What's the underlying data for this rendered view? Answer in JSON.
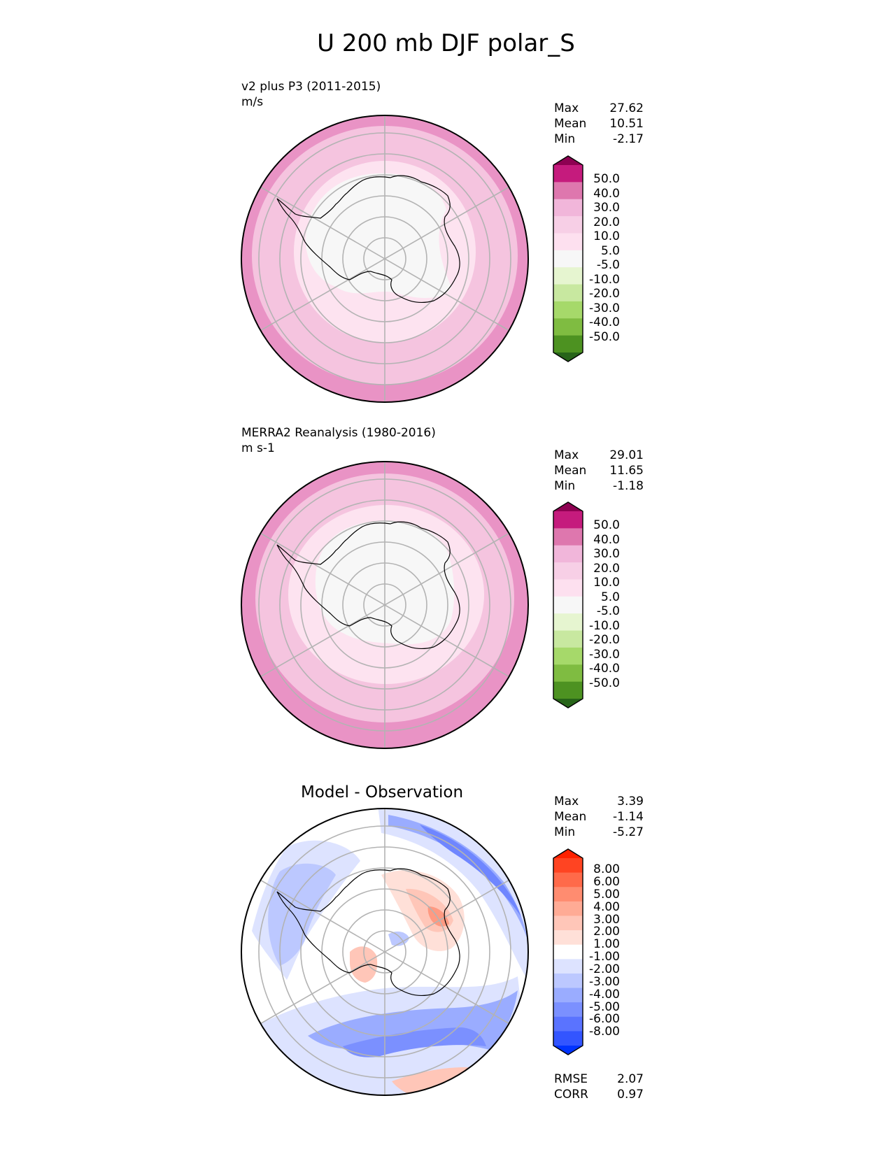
{
  "title": "U 200 mb DJF polar_S",
  "panels": [
    {
      "id": "model",
      "title": "v2 plus P3 (2011-2015)",
      "units": "m/s",
      "stats": [
        {
          "label": "Max",
          "value": "27.62"
        },
        {
          "label": "Mean",
          "value": "10.51"
        },
        {
          "label": "Min",
          "value": "-2.17"
        }
      ],
      "colorbar": {
        "labels": [
          "50.0",
          "40.0",
          "30.0",
          "20.0",
          "10.0",
          "5.0",
          "-5.0",
          "-10.0",
          "-20.0",
          "-30.0",
          "-40.0",
          "-50.0"
        ],
        "colors": [
          "#8e0152",
          "#c51b7d",
          "#de77ae",
          "#f1b6da",
          "#f7cfe6",
          "#fde0ef",
          "#f7f7f7",
          "#e6f5d0",
          "#c8e8a0",
          "#a6d96a",
          "#7fbc41",
          "#4d9221",
          "#276419"
        ]
      }
    },
    {
      "id": "obs",
      "title": "MERRA2 Reanalysis (1980-2016)",
      "units": "m s-1",
      "stats": [
        {
          "label": "Max",
          "value": "29.01"
        },
        {
          "label": "Mean",
          "value": "11.65"
        },
        {
          "label": "Min",
          "value": "-1.18"
        }
      ],
      "colorbar": {
        "labels": [
          "50.0",
          "40.0",
          "30.0",
          "20.0",
          "10.0",
          "5.0",
          "-5.0",
          "-10.0",
          "-20.0",
          "-30.0",
          "-40.0",
          "-50.0"
        ],
        "colors": [
          "#8e0152",
          "#c51b7d",
          "#de77ae",
          "#f1b6da",
          "#f7cfe6",
          "#fde0ef",
          "#f7f7f7",
          "#e6f5d0",
          "#c8e8a0",
          "#a6d96a",
          "#7fbc41",
          "#4d9221",
          "#276419"
        ]
      }
    },
    {
      "id": "diff",
      "title": "Model - Observation",
      "stats": [
        {
          "label": "Max",
          "value": "3.39"
        },
        {
          "label": "Mean",
          "value": "-1.14"
        },
        {
          "label": "Min",
          "value": "-5.27"
        }
      ],
      "metrics": [
        {
          "label": "RMSE",
          "value": "2.07"
        },
        {
          "label": "CORR",
          "value": "0.97"
        }
      ],
      "colorbar": {
        "labels": [
          "8.00",
          "6.00",
          "5.00",
          "4.00",
          "3.00",
          "2.00",
          "1.00",
          "-1.00",
          "-2.00",
          "-3.00",
          "-4.00",
          "-5.00",
          "-6.00",
          "-8.00"
        ],
        "colors": [
          "#ff2200",
          "#ff4422",
          "#ff6a4a",
          "#ff8c70",
          "#ffab95",
          "#ffc6b8",
          "#ffe0d8",
          "#ffffff",
          "#dde3ff",
          "#bcc8ff",
          "#9aacff",
          "#7b90ff",
          "#5a73ff",
          "#3355ff",
          "#0033ff"
        ]
      }
    }
  ],
  "chart_data": [
    {
      "type": "heatmap",
      "projection": "south polar stereographic",
      "title": "v2 plus P3 (2011-2015)",
      "variable": "U 200 mb DJF",
      "units": "m/s",
      "levels": [
        -50,
        -40,
        -30,
        -20,
        -10,
        -5,
        5,
        10,
        20,
        30,
        40,
        50
      ],
      "stats": {
        "max": 27.62,
        "mean": 10.51,
        "min": -2.17
      }
    },
    {
      "type": "heatmap",
      "projection": "south polar stereographic",
      "title": "MERRA2 Reanalysis (1980-2016)",
      "variable": "U 200 mb DJF",
      "units": "m s-1",
      "levels": [
        -50,
        -40,
        -30,
        -20,
        -10,
        -5,
        5,
        10,
        20,
        30,
        40,
        50
      ],
      "stats": {
        "max": 29.01,
        "mean": 11.65,
        "min": -1.18
      }
    },
    {
      "type": "heatmap",
      "projection": "south polar stereographic",
      "title": "Model - Observation",
      "levels": [
        -8,
        -6,
        -5,
        -4,
        -3,
        -2,
        -1,
        1,
        2,
        3,
        4,
        5,
        6,
        8
      ],
      "stats": {
        "max": 3.39,
        "mean": -1.14,
        "min": -5.27,
        "rmse": 2.07,
        "corr": 0.97
      }
    }
  ]
}
